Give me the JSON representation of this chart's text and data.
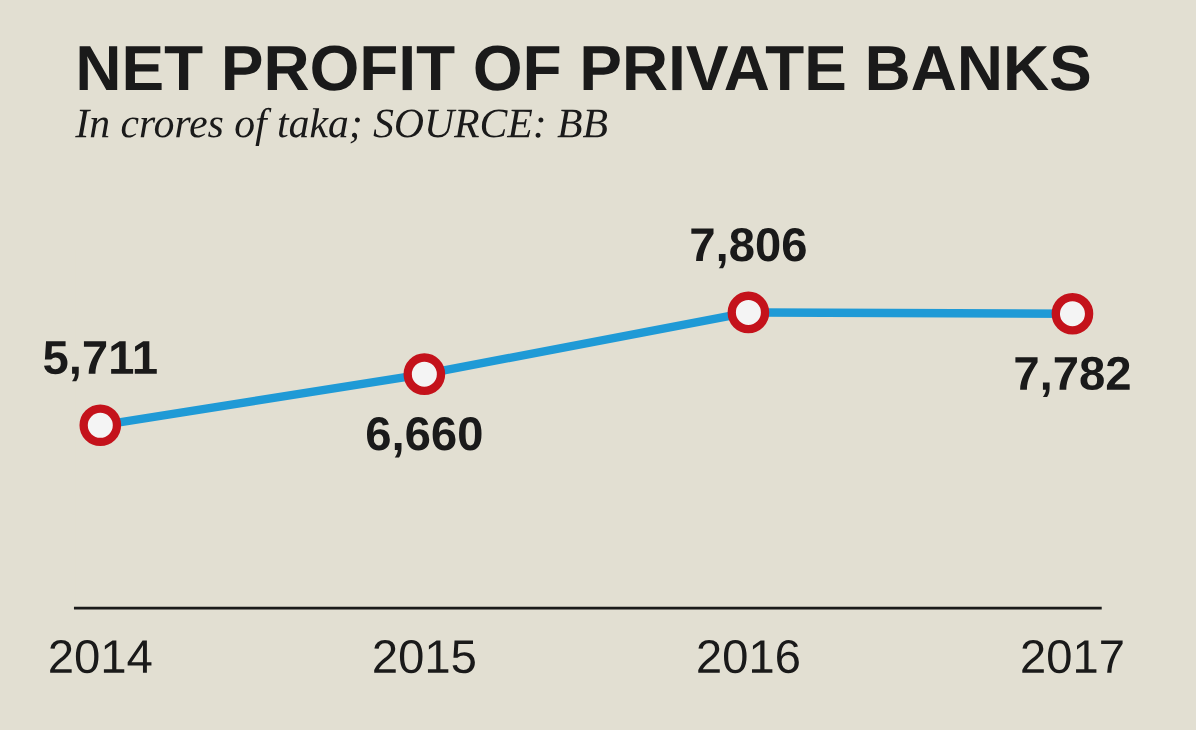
{
  "chart_data": {
    "type": "line",
    "title": "NET PROFIT OF PRIVATE BANKS",
    "subtitle": "In crores of taka; SOURCE: BB",
    "categories": [
      "2014",
      "2015",
      "2016",
      "2017"
    ],
    "series": [
      {
        "color": "#1f9ad6",
        "values": [
          5711,
          6660,
          7806,
          7782
        ],
        "value_labels": [
          "5,711",
          "6,660",
          "7,806",
          "7,782"
        ]
      }
    ],
    "marker": "circle",
    "line_style": "solid",
    "grid": false,
    "legend": false,
    "tick_labels": "x"
  }
}
